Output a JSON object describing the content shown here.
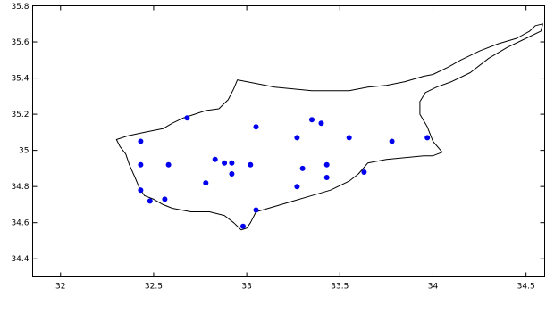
{
  "chart_data": {
    "type": "scatter",
    "title": "",
    "xlabel": "",
    "ylabel": "",
    "xlim": [
      31.85,
      34.6
    ],
    "ylim": [
      34.3,
      35.8
    ],
    "grid": false,
    "legend": "none",
    "x_ticks": [
      "32",
      "32.5",
      "33",
      "33.5",
      "34",
      "34.5"
    ],
    "x_tick_values": [
      32,
      32.5,
      33,
      33.5,
      34,
      34.5
    ],
    "y_ticks": [
      "34.4",
      "34.6",
      "34.8",
      "35",
      "35.2",
      "35.4",
      "35.6",
      "35.8"
    ],
    "y_tick_values": [
      34.4,
      34.6,
      34.8,
      35.0,
      35.2,
      35.4,
      35.6,
      35.8
    ],
    "marker_color": "#0000ee",
    "outline_color": "#000000",
    "coastline": [
      [
        32.3,
        35.06
      ],
      [
        32.36,
        35.08
      ],
      [
        32.45,
        35.1
      ],
      [
        32.55,
        35.12
      ],
      [
        32.6,
        35.15
      ],
      [
        32.66,
        35.18
      ],
      [
        32.72,
        35.2
      ],
      [
        32.78,
        35.22
      ],
      [
        32.85,
        35.23
      ],
      [
        32.9,
        35.28
      ],
      [
        32.93,
        35.34
      ],
      [
        32.95,
        35.39
      ],
      [
        33.05,
        35.37
      ],
      [
        33.15,
        35.35
      ],
      [
        33.25,
        35.34
      ],
      [
        33.35,
        35.33
      ],
      [
        33.45,
        35.33
      ],
      [
        33.55,
        35.33
      ],
      [
        33.65,
        35.35
      ],
      [
        33.75,
        35.36
      ],
      [
        33.85,
        35.38
      ],
      [
        33.95,
        35.41
      ],
      [
        34.0,
        35.42
      ],
      [
        34.08,
        35.46
      ],
      [
        34.15,
        35.5
      ],
      [
        34.25,
        35.55
      ],
      [
        34.35,
        35.59
      ],
      [
        34.45,
        35.62
      ],
      [
        34.52,
        35.66
      ],
      [
        34.55,
        35.69
      ],
      [
        34.59,
        35.7
      ],
      [
        34.58,
        35.66
      ],
      [
        34.5,
        35.62
      ],
      [
        34.4,
        35.57
      ],
      [
        34.3,
        35.51
      ],
      [
        34.2,
        35.43
      ],
      [
        34.1,
        35.38
      ],
      [
        34.02,
        35.35
      ],
      [
        33.96,
        35.32
      ],
      [
        33.93,
        35.27
      ],
      [
        33.93,
        35.2
      ],
      [
        33.97,
        35.13
      ],
      [
        34.0,
        35.05
      ],
      [
        34.05,
        34.99
      ],
      [
        34.0,
        34.97
      ],
      [
        33.95,
        34.97
      ],
      [
        33.85,
        34.96
      ],
      [
        33.75,
        34.95
      ],
      [
        33.65,
        34.93
      ],
      [
        33.6,
        34.87
      ],
      [
        33.55,
        34.83
      ],
      [
        33.45,
        34.78
      ],
      [
        33.35,
        34.75
      ],
      [
        33.25,
        34.72
      ],
      [
        33.15,
        34.69
      ],
      [
        33.05,
        34.66
      ],
      [
        33.02,
        34.6
      ],
      [
        33.0,
        34.57
      ],
      [
        32.97,
        34.56
      ],
      [
        32.93,
        34.6
      ],
      [
        32.88,
        34.64
      ],
      [
        32.8,
        34.66
      ],
      [
        32.7,
        34.66
      ],
      [
        32.6,
        34.68
      ],
      [
        32.55,
        34.7
      ],
      [
        32.5,
        34.73
      ],
      [
        32.45,
        34.75
      ],
      [
        32.42,
        34.8
      ],
      [
        32.4,
        34.85
      ],
      [
        32.37,
        34.92
      ],
      [
        32.35,
        34.98
      ],
      [
        32.32,
        35.02
      ],
      [
        32.3,
        35.06
      ]
    ],
    "points": [
      {
        "x": 32.43,
        "y": 35.05
      },
      {
        "x": 32.43,
        "y": 34.92
      },
      {
        "x": 32.43,
        "y": 34.78
      },
      {
        "x": 32.48,
        "y": 34.72
      },
      {
        "x": 32.56,
        "y": 34.73
      },
      {
        "x": 32.58,
        "y": 34.92
      },
      {
        "x": 32.68,
        "y": 35.18
      },
      {
        "x": 32.78,
        "y": 34.82
      },
      {
        "x": 32.83,
        "y": 34.95
      },
      {
        "x": 32.88,
        "y": 34.93
      },
      {
        "x": 32.92,
        "y": 34.93
      },
      {
        "x": 32.92,
        "y": 34.87
      },
      {
        "x": 32.98,
        "y": 34.58
      },
      {
        "x": 33.02,
        "y": 34.92
      },
      {
        "x": 33.05,
        "y": 34.67
      },
      {
        "x": 33.05,
        "y": 35.13
      },
      {
        "x": 33.27,
        "y": 35.07
      },
      {
        "x": 33.27,
        "y": 34.8
      },
      {
        "x": 33.3,
        "y": 34.9
      },
      {
        "x": 33.35,
        "y": 35.17
      },
      {
        "x": 33.4,
        "y": 35.15
      },
      {
        "x": 33.43,
        "y": 34.92
      },
      {
        "x": 33.43,
        "y": 34.85
      },
      {
        "x": 33.55,
        "y": 35.07
      },
      {
        "x": 33.63,
        "y": 34.88
      },
      {
        "x": 33.78,
        "y": 35.05
      },
      {
        "x": 33.97,
        "y": 35.07
      }
    ]
  }
}
